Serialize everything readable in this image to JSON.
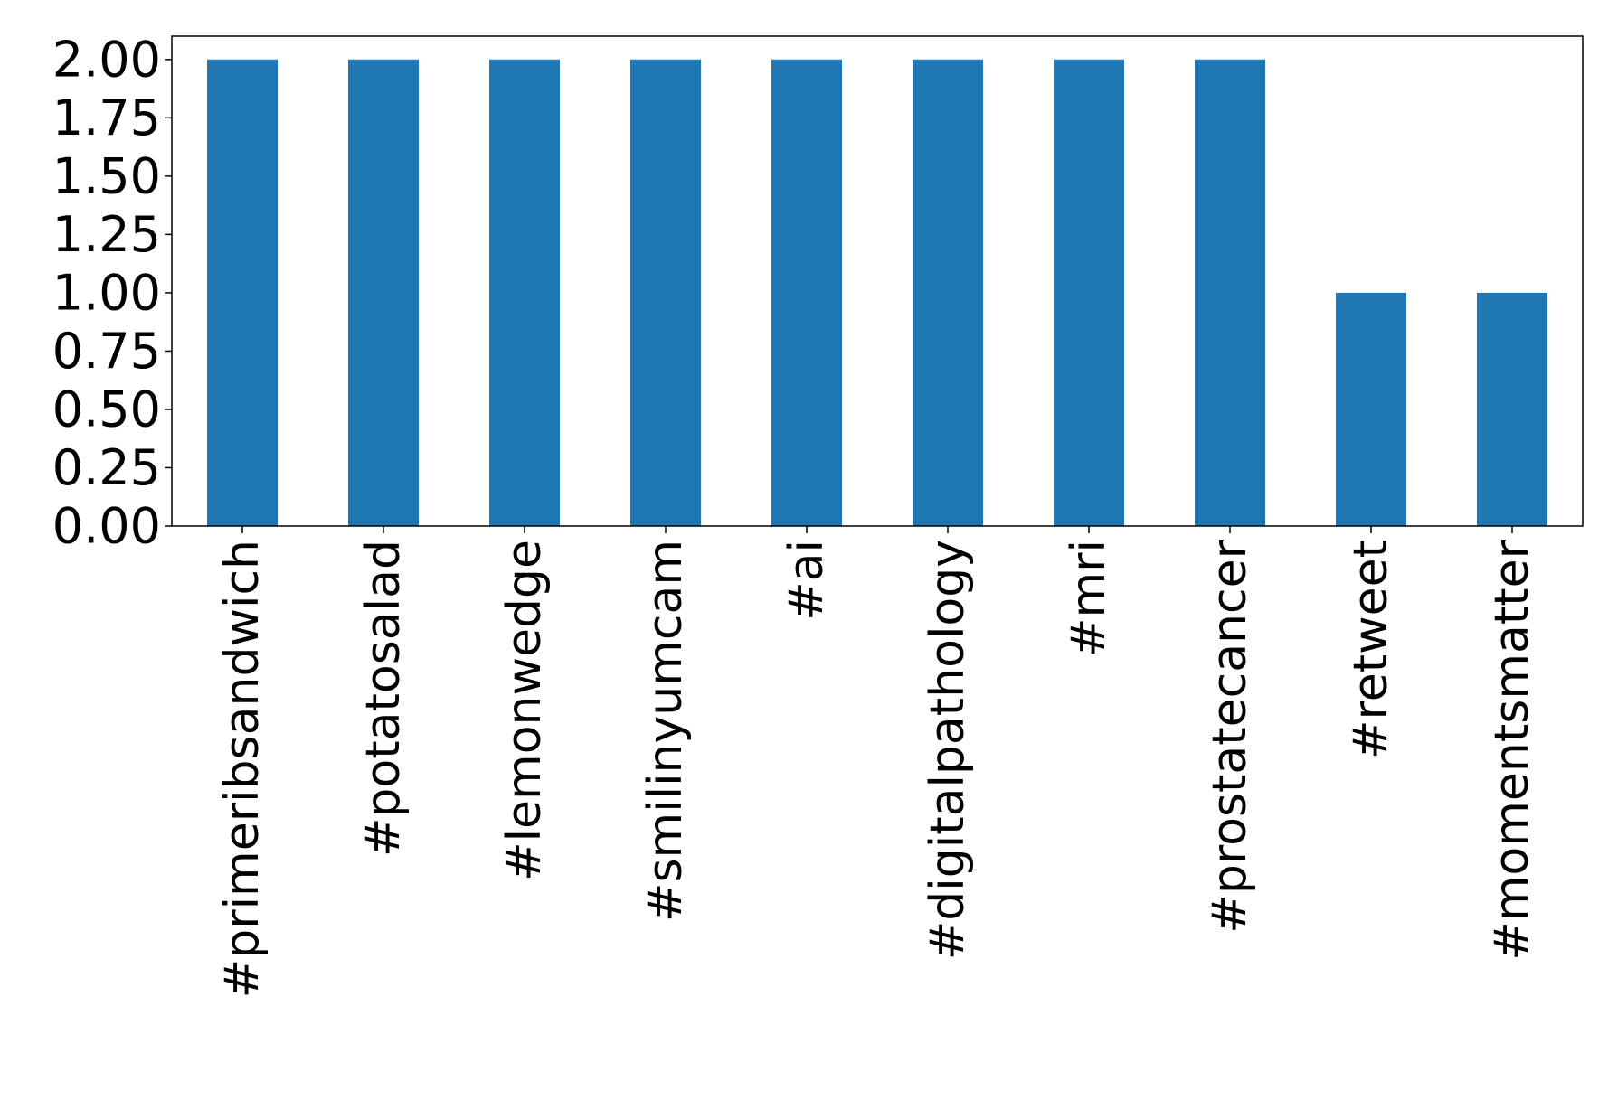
{
  "chart_data": {
    "type": "bar",
    "title": "",
    "xlabel": "",
    "ylabel": "",
    "categories": [
      "#primeribsandwich",
      "#potatosalad",
      "#lemonwedge",
      "#smilinyumcam",
      "#ai",
      "#digitalpathology",
      "#mri",
      "#prostatecancer",
      "#retweet",
      "#momentsmatter"
    ],
    "values": [
      2,
      2,
      2,
      2,
      2,
      2,
      2,
      2,
      1,
      1
    ],
    "ylim": [
      0,
      2.1
    ],
    "yticks": [
      "0.00",
      "0.25",
      "0.50",
      "0.75",
      "1.00",
      "1.25",
      "1.50",
      "1.75",
      "2.00"
    ],
    "grid": false,
    "bar_color": "#1f77b4"
  }
}
